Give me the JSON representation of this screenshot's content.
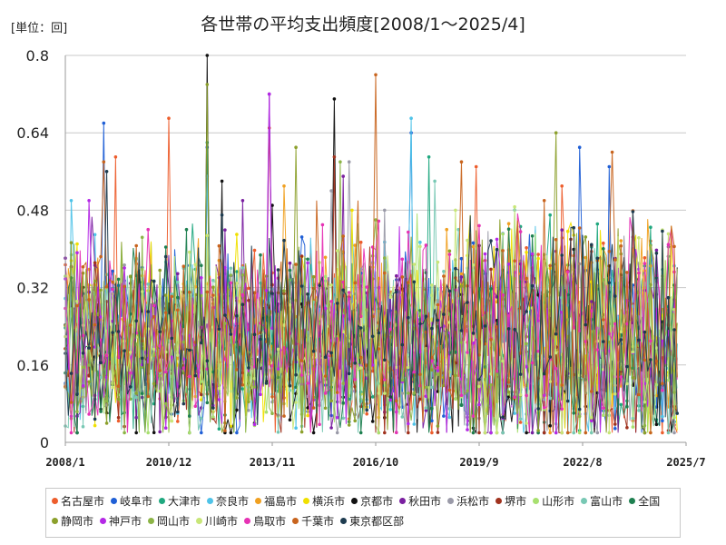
{
  "unit_label": "[単位：回]",
  "colors": {
    "grid": "#c8c8c8",
    "axis": "#9a9a9a",
    "text": "#222222"
  },
  "chart_data": {
    "type": "line",
    "title": "各世帯の平均支出頻度[2008/1～2025/4]",
    "xlabel": "",
    "ylabel": "",
    "ylim": [
      0,
      0.8
    ],
    "y_ticks": [
      0,
      0.16,
      0.32,
      0.48,
      0.64,
      0.8
    ],
    "y_tick_labels": [
      "0",
      "0.16",
      "0.32",
      "0.48",
      "0.64",
      "0.8"
    ],
    "x_range": [
      "2008/1",
      "2025/7"
    ],
    "x_ticks": [
      "2008/1",
      "2010/12",
      "2013/11",
      "2016/10",
      "2019/9",
      "2022/8",
      "2025/7"
    ],
    "grid": "horizontal",
    "legend_position": "bottom",
    "series": [
      {
        "name": "名古屋市",
        "color": "#ed5d2c",
        "peaks": [
          [
            "2009/6",
            0.59
          ],
          [
            "2010/12",
            0.67
          ],
          [
            "2013/10",
            0.65
          ],
          [
            "2019/8",
            0.57
          ],
          [
            "2022/1",
            0.53
          ]
        ]
      },
      {
        "name": "岐阜市",
        "color": "#1f5fd6",
        "peaks": [
          [
            "2009/2",
            0.66
          ],
          [
            "2012/1",
            0.61
          ],
          [
            "2017/10",
            0.64
          ],
          [
            "2022/7",
            0.61
          ],
          [
            "2023/5",
            0.57
          ]
        ]
      },
      {
        "name": "大津市",
        "color": "#1fa87f",
        "peaks": [
          [
            "2012/1",
            0.62
          ],
          [
            "2018/4",
            0.59
          ],
          [
            "2021/9",
            0.47
          ]
        ]
      },
      {
        "name": "奈良市",
        "color": "#4fc3e8",
        "peaks": [
          [
            "2008/3",
            0.5
          ],
          [
            "2017/10",
            0.67
          ],
          [
            "2012/1",
            0.55
          ]
        ]
      },
      {
        "name": "福島市",
        "color": "#f0a020",
        "peaks": [
          [
            "2014/3",
            0.53
          ],
          [
            "2018/10",
            0.44
          ],
          [
            "2023/3",
            0.4
          ]
        ]
      },
      {
        "name": "横浜市",
        "color": "#f0e000",
        "peaks": [
          [
            "2016/2",
            0.48
          ],
          [
            "2021/5",
            0.38
          ]
        ]
      },
      {
        "name": "京都市",
        "color": "#111111",
        "peaks": [
          [
            "2012/1",
            0.8
          ],
          [
            "2015/8",
            0.71
          ],
          [
            "2012/6",
            0.54
          ],
          [
            "2013/11",
            0.49
          ]
        ]
      },
      {
        "name": "秋田市",
        "color": "#7a1fa0",
        "peaks": [
          [
            "2013/1",
            0.5
          ],
          [
            "2013/10",
            0.72
          ],
          [
            "2015/11",
            0.55
          ]
        ]
      },
      {
        "name": "浜松市",
        "color": "#9a9aa8",
        "peaks": [
          [
            "2015/7",
            0.52
          ],
          [
            "2016/1",
            0.58
          ],
          [
            "2017/1",
            0.48
          ]
        ]
      },
      {
        "name": "堺市",
        "color": "#a0321e",
        "peaks": [
          [
            "2015/8",
            0.59
          ],
          [
            "2022/4",
            0.42
          ]
        ]
      },
      {
        "name": "山形市",
        "color": "#a8e070",
        "peaks": [
          [
            "2023/2",
            0.38
          ],
          [
            "2024/3",
            0.37
          ]
        ]
      },
      {
        "name": "富山市",
        "color": "#78c8b4",
        "peaks": [
          [
            "2018/6",
            0.54
          ],
          [
            "2019/2",
            0.44
          ]
        ]
      },
      {
        "name": "全国",
        "color": "#1e8050",
        "peaks": [
          [
            "2011/6",
            0.44
          ]
        ]
      },
      {
        "name": "静岡市",
        "color": "#8ca02c",
        "peaks": [
          [
            "2012/1",
            0.74
          ],
          [
            "2014/7",
            0.61
          ],
          [
            "2021/11",
            0.64
          ]
        ]
      },
      {
        "name": "神戸市",
        "color": "#b428e6",
        "peaks": [
          [
            "2008/9",
            0.5
          ],
          [
            "2013/10",
            0.72
          ],
          [
            "2020/3",
            0.42
          ]
        ]
      },
      {
        "name": "岡山市",
        "color": "#8cb446",
        "peaks": [
          [
            "2015/10",
            0.58
          ],
          [
            "2016/10",
            0.46
          ]
        ]
      },
      {
        "name": "川崎市",
        "color": "#c8e678",
        "peaks": [
          [
            "2019/1",
            0.48
          ]
        ]
      },
      {
        "name": "鳥取市",
        "color": "#e632b4",
        "peaks": [
          [
            "2010/5",
            0.44
          ],
          [
            "2015/4",
            0.45
          ]
        ]
      },
      {
        "name": "千葉市",
        "color": "#c8641e",
        "peaks": [
          [
            "2016/10",
            0.76
          ],
          [
            "2009/2",
            0.58
          ],
          [
            "2023/6",
            0.6
          ],
          [
            "2019/3",
            0.58
          ]
        ]
      },
      {
        "name": "東京都区部",
        "color": "#1e3c50",
        "peaks": [
          [
            "2009/3",
            0.56
          ],
          [
            "2012/6",
            0.47
          ],
          [
            "2025/4",
            0.06
          ]
        ]
      }
    ]
  }
}
